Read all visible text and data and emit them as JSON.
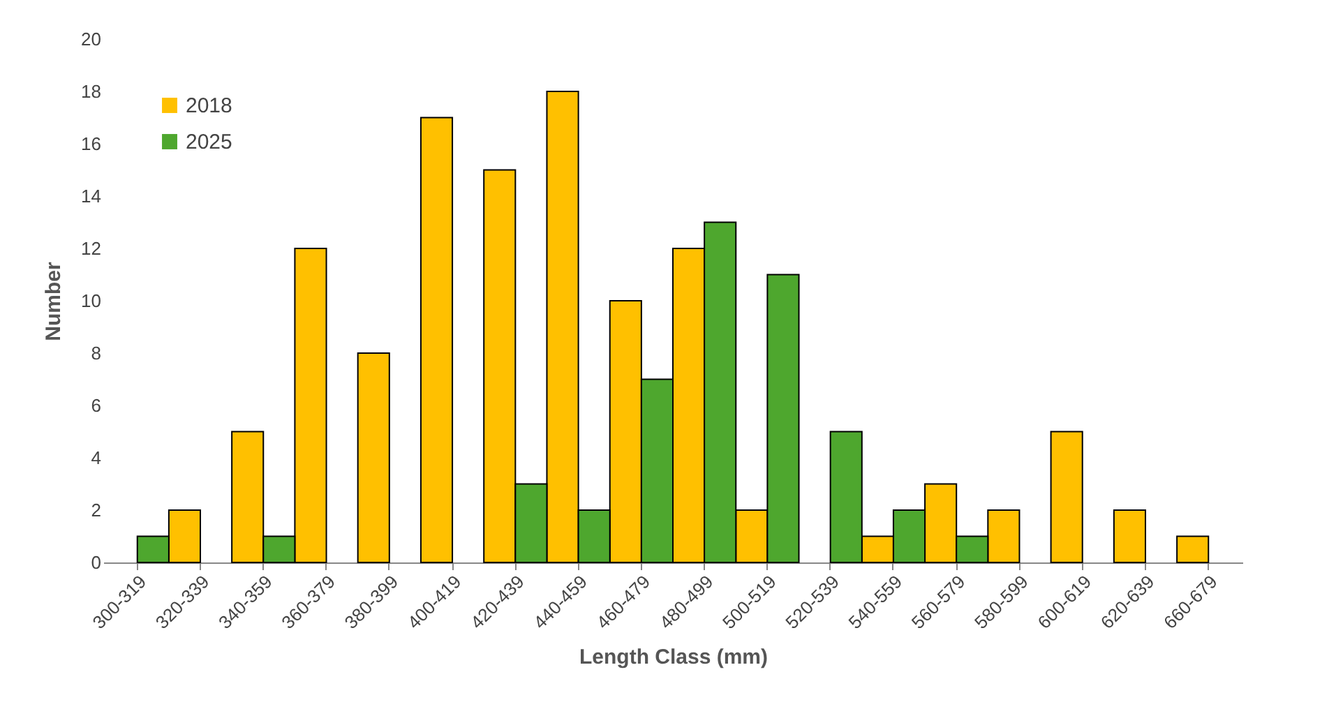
{
  "chart_data": {
    "type": "bar",
    "xlabel": "Length Class (mm)",
    "ylabel": "Number",
    "categories": [
      "300-319",
      "320-339",
      "340-359",
      "360-379",
      "380-399",
      "400-419",
      "420-439",
      "440-459",
      "460-479",
      "480-499",
      "500-519",
      "520-539",
      "540-559",
      "560-579",
      "580-599",
      "600-619",
      "620-639",
      "660-679"
    ],
    "series": [
      {
        "name": "2018",
        "color": "#ffc000",
        "values": [
          0,
          2,
          5,
          12,
          8,
          17,
          15,
          18,
          10,
          12,
          2,
          0,
          1,
          3,
          2,
          5,
          2,
          1
        ]
      },
      {
        "name": "2025",
        "color": "#4ea72e",
        "values": [
          1,
          0,
          1,
          0,
          0,
          0,
          3,
          2,
          7,
          13,
          11,
          5,
          2,
          1,
          0,
          0,
          0,
          0
        ]
      }
    ],
    "ylim": [
      0,
      20
    ],
    "yticks": [
      0,
      2,
      4,
      6,
      8,
      10,
      12,
      14,
      16,
      18,
      20
    ],
    "grid": false,
    "legend": "top left"
  }
}
